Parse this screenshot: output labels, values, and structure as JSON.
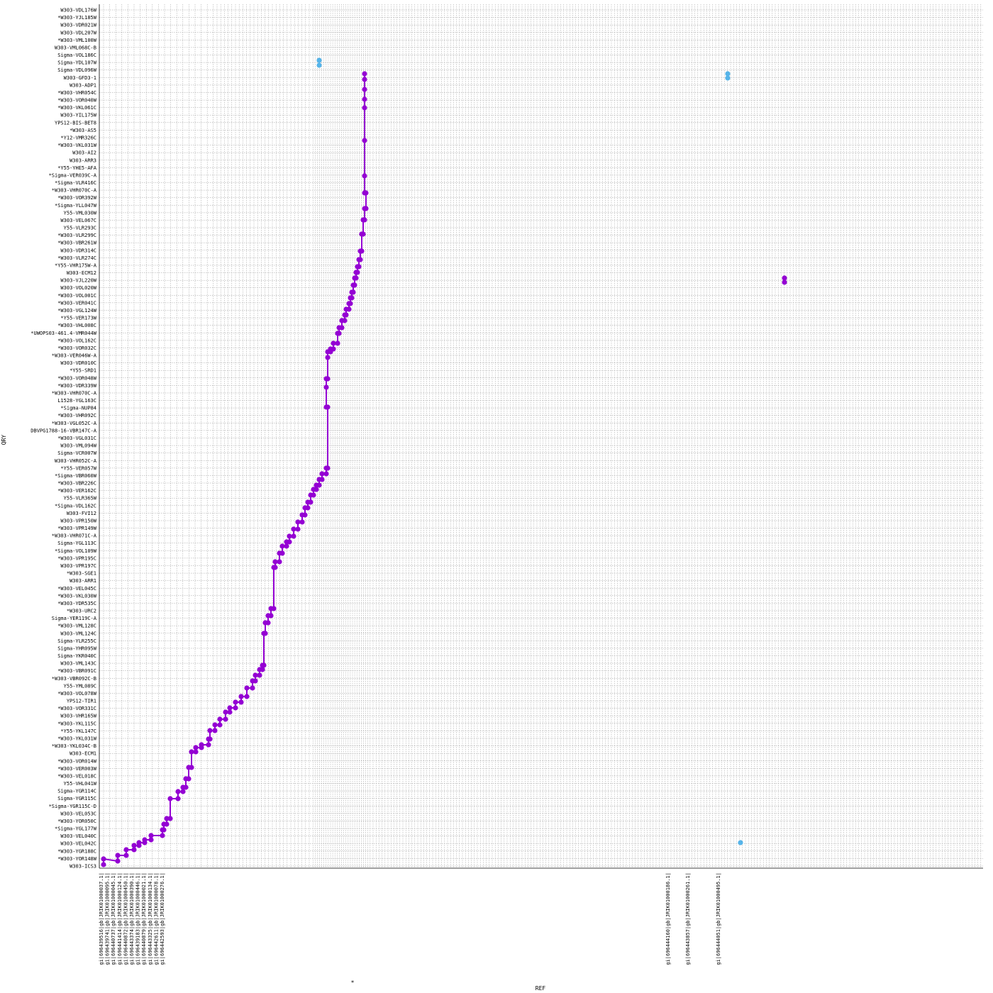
{
  "chart_data": {
    "type": "scatter",
    "xlabel": "REF",
    "ylabel": "QRY",
    "x_marker": "*",
    "grid": true,
    "forward_color": "#9400d3",
    "reverse_color": "#56b4e9",
    "x_ticks": [
      "gi|696439516|gb|JRIK01000037.1|",
      "gi|696439741|gb|JRIK01000095.1|",
      "gi|696440737|gb|JRIK01000045.1|",
      "gi|696441414|gb|JRIK01000124.1|",
      "gi|696440872|gb|JRIK01000450.1|",
      "gi|696443374|gb|JRIK01000390.1|",
      "gi|696439183|gb|JRIK01000446.1|",
      "gi|696440879|gb|JRIK01000021.1|",
      "gi|696443325|gb|JRIK01000134.1|",
      "gi|696442611|gb|JRIK01000078.1|",
      "gi|696442593|gb|JRIK01000276.1|"
    ],
    "x_ticks_far": [
      "gi|696444160|gb|JRIK01000186.1|",
      "gi|696443857|gb|JRIK01000261.1|",
      "gi|696444051|gb|JRIK01000495.1|"
    ],
    "y_ticks": [
      "W303-ICS3",
      "*W303-YOR148W",
      "*W303-YGR188C",
      "W303-VEL042C",
      "W303-VEL040C",
      "*Sigma-YGL177W",
      "*W303-YOR050C",
      "W303-VEL053C",
      "*Sigma-YGR115C-D",
      "Sigma-YGR115C",
      "Sigma-YGR114C",
      "Y55-VHL041W",
      "*W303-VEL018C",
      "*W303-VER003W",
      "*W303-VOR014W",
      "W303-ECM1",
      "*W303-YKL034C-B",
      "*W303-YKL031W",
      "*Y55-YKL147C",
      "*W303-YKL115C",
      "W303-VHR165W",
      "*W303-VOR331C",
      "YPS12-TIR1",
      "*W303-VOL078W",
      "Y55-YML089C",
      "*W303-VBR092C-B",
      "*W303-VBR091C",
      "W303-VML143C",
      "Sigma-YKR040C",
      "Sigma-YHR095W",
      "Sigma-YLR255C",
      "W303-VML124C",
      "*W303-VML128C",
      "Sigma-YER119C-A",
      "*W303-URC2",
      "*W303-YDR535C",
      "*W303-VKL030W",
      "*W303-VEL045C",
      "W303-ARR1",
      "*W303-SGE1",
      "W303-VPR197C",
      "*W303-VPR195C",
      "*Sigma-VOL109W",
      "Sigma-YGL113C",
      "*W303-VHR071C-A",
      "*W303-VPR149W",
      "W303-VPR150W",
      "W303-FVI12",
      "*Sigma-VDL162C",
      "Y55-VLR365W",
      "*W303-VER162C",
      "*W303-VBR226C",
      "*Sigma-VBR060W",
      "*Y55-VER057W",
      "W303-VHR052C-A",
      "Sigma-VCR007W",
      "W303-VML094W",
      "*W303-VGL031C",
      "DBVPG1788-16-VBR147C-A",
      "*W303-VGL052C-A",
      "*W303-VHR092C",
      "*Sigma-NUP84",
      "L1528-YGL163C",
      "*W303-VHR070C-A",
      "*W303-VDR339W",
      "*W303-VOR048W",
      "*Y55-SRD1",
      "W303-VDR010C",
      "*W303-VER046W-A",
      "*W303-VOR032C",
      "*W303-VOL162C",
      "*UWOPS03-461.4-VMR044W",
      "*W303-VHL008C",
      "*Y55-VER173W",
      "*W303-VGL124W",
      "*W303-VER041C",
      "*W303-VOL001C",
      "W303-VOL020W",
      "W303-VJL220W",
      "W303-ECM12",
      "*Y55-VHR175W-A",
      "*W303-VLR274C",
      "W303-VDR314C",
      "*W303-VBR261W",
      "*W303-VLR299C",
      "Y55-VLR293C",
      "W303-VEL067C",
      "Y55-VML030W",
      "*Sigma-YLL047W",
      "*W303-VOR392W",
      "*W303-VHR070C-A",
      "*Sigma-VLR416C",
      "*Sigma-VER039C-A",
      "*Y55-YHE5-AFA",
      "W303-ARR3",
      "W303-AI2",
      "*W303-VKL031W",
      "*Y12-VMR326C",
      "*W303-AS5",
      "YPS12-BIS-BET8",
      "W303-YIL175W",
      "*W303-VKL061C",
      "*W303-VOR040W",
      "*W303-VHR054C",
      "W303-ADP1",
      "W303-GFD3-1",
      "Sigma-VDL096W",
      "Sigma-YDL107W",
      "Sigma-VOL186C",
      "W303-VML068C-B",
      "*W303-VML100W",
      "W303-VDL207W",
      "W303-VDR021W",
      "*W303-YJL185W",
      "W303-VDL176W"
    ],
    "series": [
      {
        "name": "",
        "strand": "forward",
        "points": [
          [
            146,
            1219
          ],
          [
            146,
            1211
          ],
          [
            166,
            1214
          ],
          [
            166,
            1206
          ],
          [
            178,
            1206
          ],
          [
            178,
            1198
          ],
          [
            189,
            1198
          ],
          [
            189,
            1192
          ],
          [
            196,
            1192
          ],
          [
            196,
            1188
          ],
          [
            204,
            1188
          ],
          [
            204,
            1184
          ],
          [
            213,
            1184
          ],
          [
            213,
            1178
          ],
          [
            229,
            1178
          ],
          [
            229,
            1170
          ],
          [
            231,
            1170
          ],
          [
            231,
            1162
          ],
          [
            235,
            1162
          ],
          [
            235,
            1154
          ],
          [
            240,
            1154
          ],
          [
            240,
            1126
          ],
          [
            251,
            1126
          ],
          [
            251,
            1116
          ],
          [
            258,
            1116
          ],
          [
            258,
            1110
          ],
          [
            262,
            1110
          ],
          [
            262,
            1098
          ],
          [
            266,
            1098
          ],
          [
            266,
            1082
          ],
          [
            270,
            1082
          ],
          [
            270,
            1060
          ],
          [
            276,
            1060
          ],
          [
            276,
            1054
          ],
          [
            284,
            1054
          ],
          [
            284,
            1050
          ],
          [
            294,
            1050
          ],
          [
            294,
            1042
          ],
          [
            296,
            1042
          ],
          [
            296,
            1030
          ],
          [
            303,
            1030
          ],
          [
            303,
            1022
          ],
          [
            310,
            1022
          ],
          [
            310,
            1014
          ],
          [
            318,
            1014
          ],
          [
            318,
            1004
          ],
          [
            324,
            1004
          ],
          [
            324,
            998
          ],
          [
            332,
            998
          ],
          [
            332,
            990
          ],
          [
            340,
            990
          ],
          [
            340,
            982
          ],
          [
            348,
            982
          ],
          [
            348,
            970
          ],
          [
            356,
            970
          ],
          [
            356,
            960
          ],
          [
            360,
            960
          ],
          [
            360,
            952
          ],
          [
            366,
            952
          ],
          [
            366,
            944
          ],
          [
            370,
            944
          ],
          [
            370,
            938
          ],
          [
            372,
            938
          ],
          [
            372,
            893
          ],
          [
            374,
            893
          ],
          [
            374,
            878
          ],
          [
            378,
            878
          ],
          [
            378,
            868
          ],
          [
            382,
            868
          ],
          [
            382,
            858
          ],
          [
            386,
            858
          ],
          [
            386,
            800
          ],
          [
            388,
            800
          ],
          [
            388,
            792
          ],
          [
            394,
            792
          ],
          [
            394,
            780
          ],
          [
            398,
            780
          ],
          [
            398,
            770
          ],
          [
            404,
            770
          ],
          [
            404,
            764
          ],
          [
            408,
            764
          ],
          [
            408,
            756
          ],
          [
            414,
            756
          ],
          [
            414,
            746
          ],
          [
            420,
            746
          ],
          [
            420,
            736
          ],
          [
            426,
            736
          ],
          [
            426,
            726
          ],
          [
            430,
            726
          ],
          [
            430,
            716
          ],
          [
            434,
            716
          ],
          [
            434,
            708
          ],
          [
            438,
            708
          ],
          [
            438,
            698
          ],
          [
            442,
            698
          ],
          [
            442,
            690
          ],
          [
            446,
            690
          ],
          [
            446,
            684
          ],
          [
            450,
            684
          ],
          [
            450,
            676
          ],
          [
            454,
            676
          ],
          [
            454,
            668
          ],
          [
            460,
            668
          ],
          [
            460,
            660
          ],
          [
            462,
            660
          ],
          [
            462,
            574
          ],
          [
            460,
            574
          ],
          [
            460,
            546
          ],
          [
            460,
            534
          ],
          [
            462,
            534
          ],
          [
            462,
            504
          ],
          [
            462,
            496
          ],
          [
            466,
            496
          ],
          [
            466,
            492
          ],
          [
            470,
            492
          ],
          [
            470,
            484
          ],
          [
            476,
            484
          ],
          [
            476,
            470
          ],
          [
            478,
            470
          ],
          [
            478,
            462
          ],
          [
            482,
            462
          ],
          [
            482,
            452
          ],
          [
            486,
            452
          ],
          [
            486,
            444
          ],
          [
            488,
            444
          ],
          [
            488,
            436
          ],
          [
            492,
            436
          ],
          [
            492,
            428
          ],
          [
            494,
            428
          ],
          [
            494,
            420
          ],
          [
            496,
            420
          ],
          [
            496,
            412
          ],
          [
            498,
            412
          ],
          [
            498,
            402
          ],
          [
            500,
            402
          ],
          [
            500,
            392
          ],
          [
            502,
            392
          ],
          [
            502,
            384
          ],
          [
            504,
            384
          ],
          [
            504,
            376
          ],
          [
            506,
            376
          ],
          [
            506,
            366
          ],
          [
            508,
            366
          ],
          [
            508,
            354
          ],
          [
            510,
            354
          ],
          [
            510,
            330
          ],
          [
            512,
            330
          ],
          [
            512,
            310
          ],
          [
            514,
            310
          ],
          [
            514,
            294
          ],
          [
            516,
            294
          ],
          [
            516,
            272
          ],
          [
            514,
            272
          ],
          [
            514,
            248
          ],
          [
            514,
            198
          ],
          [
            514,
            152
          ],
          [
            514,
            140
          ],
          [
            514,
            126
          ],
          [
            514,
            112
          ],
          [
            514,
            104
          ]
        ]
      },
      {
        "name": "",
        "strand": "reverse",
        "points": [
          [
            450,
            85
          ],
          [
            450,
            92
          ],
          [
            1026,
            104
          ],
          [
            1026,
            110
          ],
          [
            1044,
            1188
          ]
        ]
      },
      {
        "name": "",
        "strand": "forward",
        "points": [
          [
            1106,
            392
          ],
          [
            1106,
            398
          ]
        ]
      }
    ]
  }
}
